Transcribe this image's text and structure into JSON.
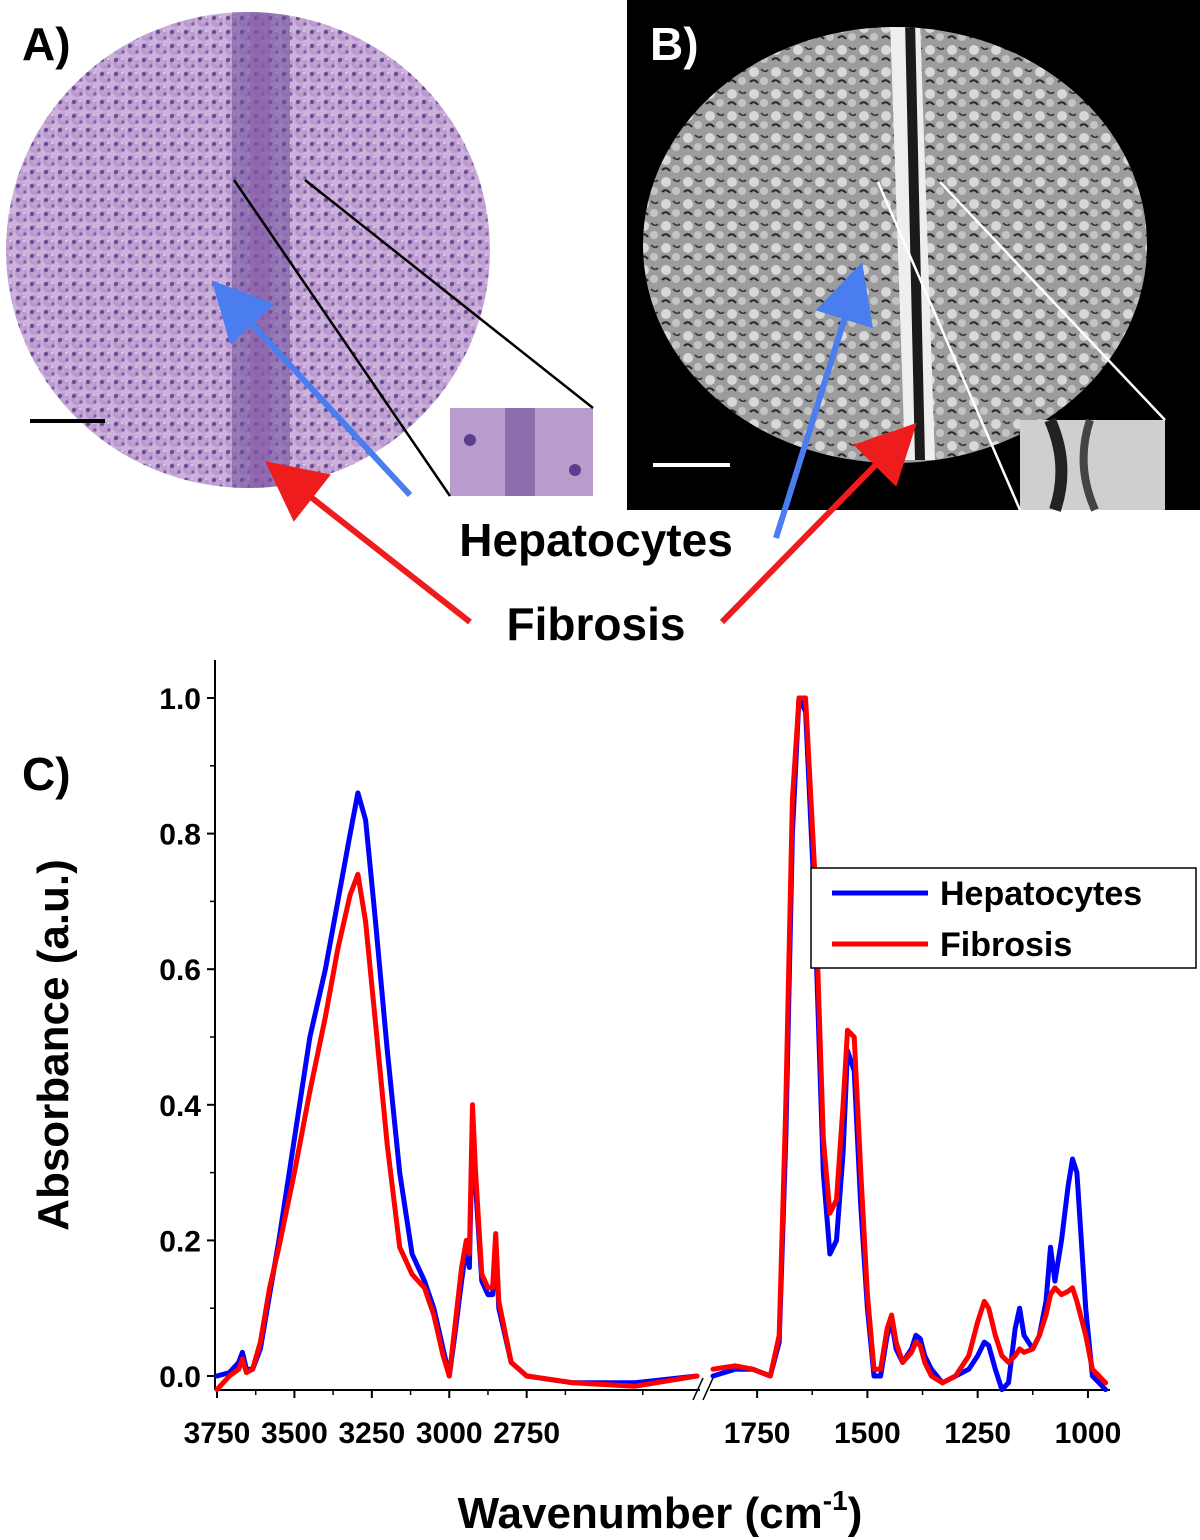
{
  "panels": {
    "a_label": "A)",
    "b_label": "B)",
    "c_label": "C)"
  },
  "annotations": {
    "hepatocytes": "Hepatocytes",
    "fibrosis": "Fibrosis",
    "hepatocytes_arrow_color": "#4a7df0",
    "fibrosis_arrow_color": "#ee1c1c"
  },
  "chart_data": {
    "type": "line",
    "xlabel": "Wavenumber (cm",
    "xlabel_sup": "-1",
    "xlabel_close": ")",
    "ylabel": "Absorbance (a.u.)",
    "ylim": [
      0,
      1.0
    ],
    "yticks": [
      "0.0",
      "0.2",
      "0.4",
      "0.6",
      "0.8",
      "1.0"
    ],
    "x_axis_break": [
      2200,
      1850
    ],
    "xlim_left": [
      3750,
      2200
    ],
    "xlim_right": [
      1850,
      950
    ],
    "xticks_left": [
      "3750",
      "3500",
      "3250",
      "3000",
      "2750"
    ],
    "xticks_right": [
      "1750",
      "1500",
      "1250",
      "1000"
    ],
    "legend_position": "top-right",
    "series": [
      {
        "name": "Hepatocytes",
        "color": "#0000ff",
        "points": [
          [
            3750,
            0.0
          ],
          [
            3710,
            0.005
          ],
          [
            3680,
            0.02
          ],
          [
            3668,
            0.035
          ],
          [
            3655,
            0.01
          ],
          [
            3635,
            0.01
          ],
          [
            3610,
            0.04
          ],
          [
            3580,
            0.12
          ],
          [
            3550,
            0.2
          ],
          [
            3500,
            0.35
          ],
          [
            3450,
            0.5
          ],
          [
            3400,
            0.6
          ],
          [
            3360,
            0.7
          ],
          [
            3320,
            0.8
          ],
          [
            3295,
            0.86
          ],
          [
            3270,
            0.82
          ],
          [
            3240,
            0.68
          ],
          [
            3200,
            0.48
          ],
          [
            3160,
            0.3
          ],
          [
            3120,
            0.18
          ],
          [
            3080,
            0.14
          ],
          [
            3050,
            0.1
          ],
          [
            3020,
            0.04
          ],
          [
            3000,
            0.0
          ],
          [
            2985,
            0.05
          ],
          [
            2960,
            0.14
          ],
          [
            2945,
            0.19
          ],
          [
            2935,
            0.16
          ],
          [
            2925,
            0.38
          ],
          [
            2915,
            0.28
          ],
          [
            2895,
            0.14
          ],
          [
            2875,
            0.12
          ],
          [
            2860,
            0.12
          ],
          [
            2850,
            0.2
          ],
          [
            2840,
            0.1
          ],
          [
            2800,
            0.02
          ],
          [
            2750,
            0.0
          ],
          [
            2600,
            -0.01
          ],
          [
            2400,
            -0.01
          ],
          [
            2200,
            0.0
          ],
          [
            1850,
            0.0
          ],
          [
            1800,
            0.01
          ],
          [
            1760,
            0.01
          ],
          [
            1720,
            0.0
          ],
          [
            1700,
            0.05
          ],
          [
            1685,
            0.35
          ],
          [
            1670,
            0.8
          ],
          [
            1655,
            1.0
          ],
          [
            1640,
            0.98
          ],
          [
            1620,
            0.7
          ],
          [
            1600,
            0.3
          ],
          [
            1585,
            0.18
          ],
          [
            1570,
            0.2
          ],
          [
            1555,
            0.33
          ],
          [
            1545,
            0.48
          ],
          [
            1530,
            0.45
          ],
          [
            1515,
            0.25
          ],
          [
            1500,
            0.1
          ],
          [
            1485,
            0.0
          ],
          [
            1470,
            0.0
          ],
          [
            1455,
            0.06
          ],
          [
            1445,
            0.08
          ],
          [
            1435,
            0.04
          ],
          [
            1420,
            0.02
          ],
          [
            1400,
            0.04
          ],
          [
            1390,
            0.06
          ],
          [
            1380,
            0.055
          ],
          [
            1370,
            0.03
          ],
          [
            1355,
            0.01
          ],
          [
            1330,
            -0.01
          ],
          [
            1300,
            0.0
          ],
          [
            1270,
            0.01
          ],
          [
            1250,
            0.03
          ],
          [
            1235,
            0.05
          ],
          [
            1225,
            0.045
          ],
          [
            1210,
            0.01
          ],
          [
            1195,
            -0.02
          ],
          [
            1180,
            -0.01
          ],
          [
            1165,
            0.07
          ],
          [
            1155,
            0.1
          ],
          [
            1145,
            0.06
          ],
          [
            1125,
            0.04
          ],
          [
            1110,
            0.06
          ],
          [
            1095,
            0.11
          ],
          [
            1085,
            0.19
          ],
          [
            1075,
            0.14
          ],
          [
            1060,
            0.2
          ],
          [
            1045,
            0.28
          ],
          [
            1035,
            0.32
          ],
          [
            1025,
            0.3
          ],
          [
            1005,
            0.1
          ],
          [
            990,
            0.0
          ],
          [
            975,
            -0.01
          ],
          [
            960,
            -0.02
          ]
        ]
      },
      {
        "name": "Fibrosis",
        "color": "#ff0000",
        "points": [
          [
            3750,
            -0.02
          ],
          [
            3710,
            0.0
          ],
          [
            3680,
            0.01
          ],
          [
            3668,
            0.025
          ],
          [
            3655,
            0.005
          ],
          [
            3635,
            0.01
          ],
          [
            3610,
            0.05
          ],
          [
            3580,
            0.13
          ],
          [
            3550,
            0.19
          ],
          [
            3500,
            0.3
          ],
          [
            3450,
            0.42
          ],
          [
            3400,
            0.53
          ],
          [
            3360,
            0.63
          ],
          [
            3320,
            0.71
          ],
          [
            3295,
            0.74
          ],
          [
            3270,
            0.67
          ],
          [
            3240,
            0.53
          ],
          [
            3200,
            0.34
          ],
          [
            3160,
            0.19
          ],
          [
            3120,
            0.15
          ],
          [
            3080,
            0.13
          ],
          [
            3050,
            0.09
          ],
          [
            3020,
            0.03
          ],
          [
            3000,
            0.0
          ],
          [
            2985,
            0.06
          ],
          [
            2960,
            0.16
          ],
          [
            2945,
            0.2
          ],
          [
            2935,
            0.18
          ],
          [
            2925,
            0.4
          ],
          [
            2915,
            0.3
          ],
          [
            2895,
            0.15
          ],
          [
            2875,
            0.13
          ],
          [
            2860,
            0.13
          ],
          [
            2850,
            0.21
          ],
          [
            2840,
            0.11
          ],
          [
            2800,
            0.02
          ],
          [
            2750,
            0.0
          ],
          [
            2600,
            -0.01
          ],
          [
            2400,
            -0.015
          ],
          [
            2200,
            0.0
          ],
          [
            1850,
            0.01
          ],
          [
            1800,
            0.015
          ],
          [
            1760,
            0.01
          ],
          [
            1720,
            0.0
          ],
          [
            1700,
            0.06
          ],
          [
            1685,
            0.4
          ],
          [
            1670,
            0.85
          ],
          [
            1655,
            1.0
          ],
          [
            1640,
            1.0
          ],
          [
            1620,
            0.75
          ],
          [
            1600,
            0.35
          ],
          [
            1585,
            0.24
          ],
          [
            1570,
            0.26
          ],
          [
            1555,
            0.4
          ],
          [
            1545,
            0.51
          ],
          [
            1530,
            0.5
          ],
          [
            1515,
            0.3
          ],
          [
            1500,
            0.12
          ],
          [
            1485,
            0.01
          ],
          [
            1470,
            0.01
          ],
          [
            1455,
            0.07
          ],
          [
            1445,
            0.09
          ],
          [
            1435,
            0.05
          ],
          [
            1420,
            0.02
          ],
          [
            1400,
            0.035
          ],
          [
            1390,
            0.05
          ],
          [
            1380,
            0.045
          ],
          [
            1370,
            0.02
          ],
          [
            1355,
            0.0
          ],
          [
            1330,
            -0.01
          ],
          [
            1300,
            0.0
          ],
          [
            1270,
            0.03
          ],
          [
            1250,
            0.08
          ],
          [
            1235,
            0.11
          ],
          [
            1225,
            0.1
          ],
          [
            1210,
            0.06
          ],
          [
            1195,
            0.03
          ],
          [
            1180,
            0.02
          ],
          [
            1165,
            0.03
          ],
          [
            1155,
            0.04
          ],
          [
            1145,
            0.035
          ],
          [
            1125,
            0.04
          ],
          [
            1110,
            0.06
          ],
          [
            1095,
            0.09
          ],
          [
            1085,
            0.12
          ],
          [
            1075,
            0.13
          ],
          [
            1060,
            0.12
          ],
          [
            1045,
            0.125
          ],
          [
            1035,
            0.13
          ],
          [
            1025,
            0.11
          ],
          [
            1005,
            0.06
          ],
          [
            990,
            0.01
          ],
          [
            975,
            0.0
          ],
          [
            960,
            -0.01
          ]
        ]
      }
    ]
  }
}
